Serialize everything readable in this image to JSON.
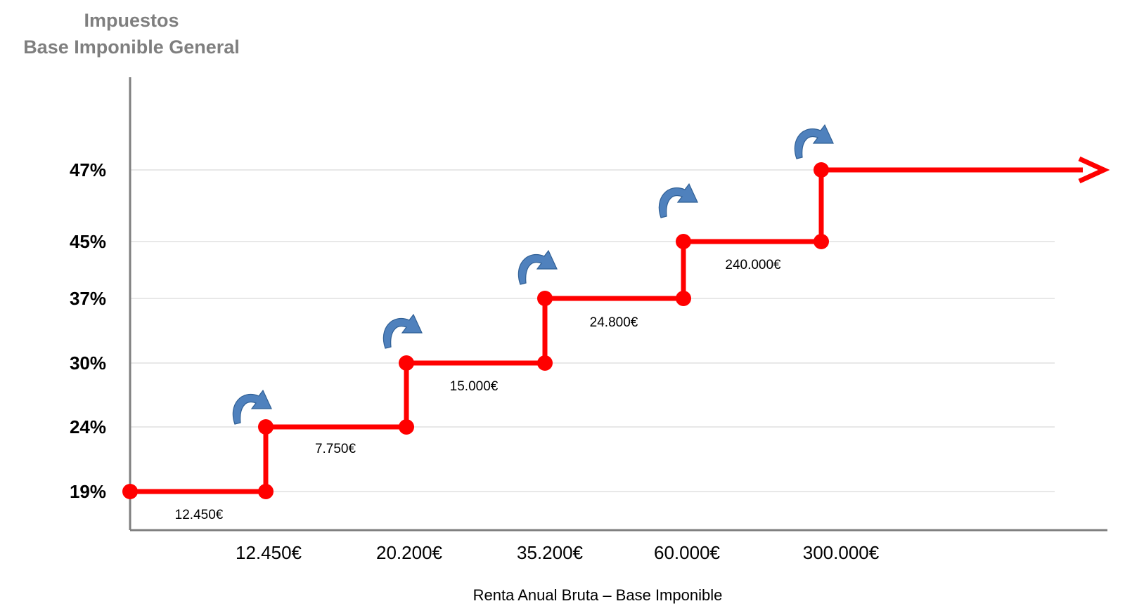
{
  "title": {
    "line1": "Impuestos",
    "line2": "Base Imponible General"
  },
  "colors": {
    "step_line": "#ff0000",
    "arrow_icon": "#4f81bd",
    "axis": "#7f7f7f",
    "grid": "#d9d9d9",
    "title": "#7f7f7f"
  },
  "chart_data": {
    "type": "line",
    "step": true,
    "title": "Impuestos Base Imponible General",
    "xlabel": "Renta Anual Bruta – Base Imponible",
    "ylabel": "",
    "grid": true,
    "y_ticks": [
      "19%",
      "24%",
      "30%",
      "37%",
      "45%",
      "47%"
    ],
    "x_ticks": [
      "12.450€",
      "20.200€",
      "35.200€",
      "60.000€",
      "300.000€"
    ],
    "brackets": [
      {
        "rate": "19%",
        "from": 0,
        "to": 12450,
        "width_label": "12.450€"
      },
      {
        "rate": "24%",
        "from": 12450,
        "to": 20200,
        "width_label": "7.750€"
      },
      {
        "rate": "30%",
        "from": 20200,
        "to": 35200,
        "width_label": "15.000€"
      },
      {
        "rate": "37%",
        "from": 35200,
        "to": 60000,
        "width_label": "24.800€"
      },
      {
        "rate": "45%",
        "from": 60000,
        "to": 300000,
        "width_label": "240.000€"
      },
      {
        "rate": "47%",
        "from": 300000,
        "to": null,
        "width_label": ""
      }
    ],
    "step_up_icon": "curved-arrow-icon"
  }
}
